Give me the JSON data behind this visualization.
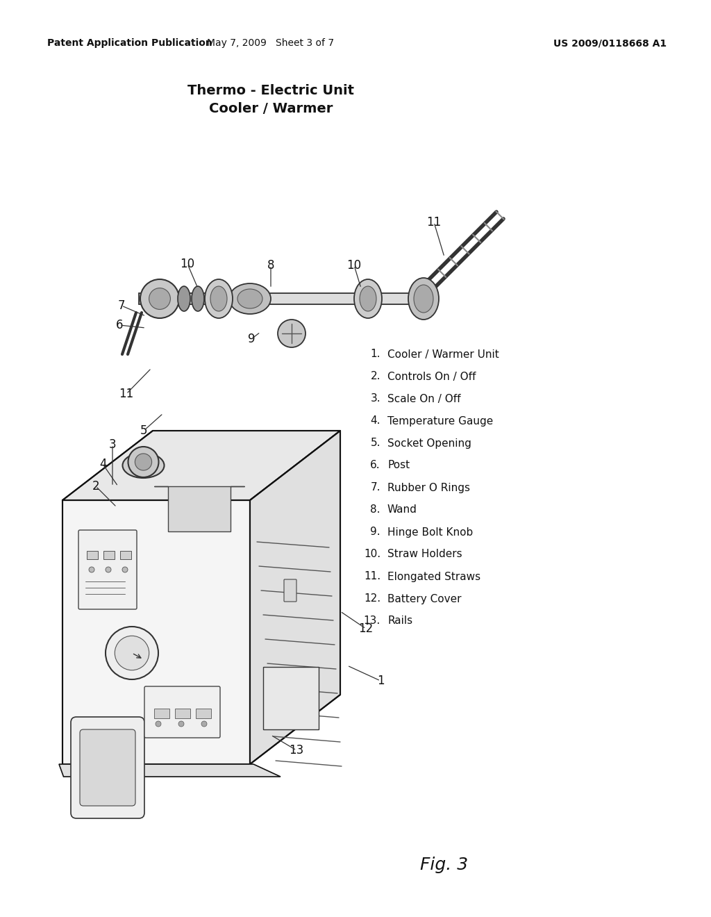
{
  "bg_color": "#ffffff",
  "page_width": 10.24,
  "page_height": 13.2,
  "header_left": "Patent Application Publication",
  "header_mid": "May 7, 2009   Sheet 3 of 7",
  "header_right": "US 2009/0118668 A1",
  "title_line1": "Thermo - Electric Unit",
  "title_line2": "Cooler / Warmer",
  "fig_label": "Fig. 3",
  "legend_items": [
    "Cooler / Warmer Unit",
    "Controls On / Off",
    "Scale On / Off",
    "Temperature Gauge",
    "Socket Opening",
    "Post",
    "Rubber O Rings",
    "Wand",
    "Hinge Bolt Knob",
    "Straw Holders",
    "Elongated Straws",
    "Battery Cover",
    "Rails"
  ]
}
